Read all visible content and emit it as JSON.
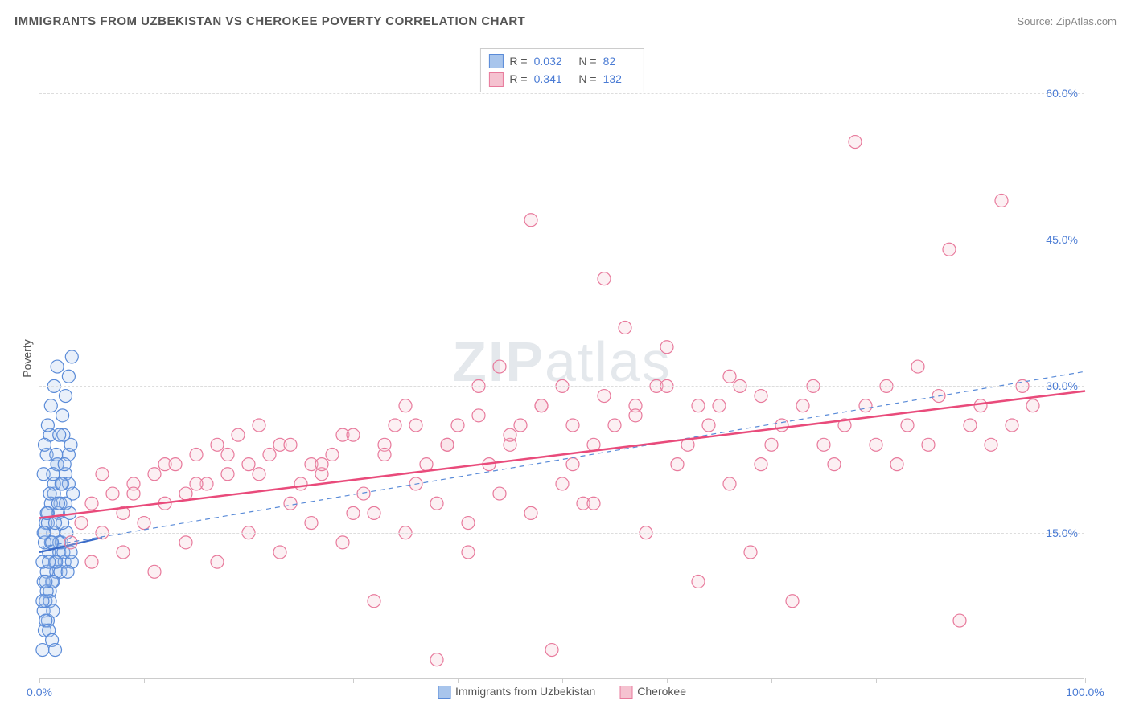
{
  "header": {
    "title": "IMMIGRANTS FROM UZBEKISTAN VS CHEROKEE POVERTY CORRELATION CHART",
    "source_label": "Source: ",
    "source_name": "ZipAtlas.com"
  },
  "watermark": {
    "zip": "ZIP",
    "atlas": "atlas"
  },
  "chart": {
    "type": "scatter",
    "ylabel": "Poverty",
    "xlim": [
      0,
      100
    ],
    "ylim": [
      0,
      65
    ],
    "x_ticks": [
      0,
      10,
      20,
      30,
      40,
      50,
      60,
      70,
      80,
      90,
      100
    ],
    "x_tick_labels": {
      "0": "0.0%",
      "100": "100.0%"
    },
    "y_grid": [
      15,
      30,
      45,
      60
    ],
    "y_tick_labels": {
      "15": "15.0%",
      "30": "30.0%",
      "45": "45.0%",
      "60": "60.0%"
    },
    "background_color": "#ffffff",
    "grid_color": "#dddddd",
    "axis_color": "#cccccc",
    "tick_label_color": "#4a7bd4",
    "axis_label_color": "#555555",
    "marker_radius": 8,
    "marker_stroke_width": 1.2,
    "marker_fill_opacity": 0.25,
    "series": [
      {
        "id": "uzbekistan",
        "label": "Immigrants from Uzbekistan",
        "color_fill": "#a8c5ec",
        "color_stroke": "#5a8bd8",
        "R": "0.032",
        "N": "82",
        "trend": {
          "x1": 0,
          "y1": 13.0,
          "x2": 6,
          "y2": 14.5,
          "stroke": "#3a6bc8",
          "width": 2.2,
          "dashed": false
        },
        "points": [
          [
            0.3,
            3
          ],
          [
            0.5,
            5
          ],
          [
            0.4,
            7
          ],
          [
            0.6,
            8
          ],
          [
            0.8,
            6
          ],
          [
            1.0,
            9
          ],
          [
            1.2,
            10
          ],
          [
            0.7,
            11
          ],
          [
            1.5,
            12
          ],
          [
            0.9,
            13
          ],
          [
            1.1,
            14
          ],
          [
            1.3,
            15
          ],
          [
            0.6,
            16
          ],
          [
            1.8,
            17
          ],
          [
            2.0,
            18
          ],
          [
            1.4,
            19
          ],
          [
            2.2,
            20
          ],
          [
            2.5,
            21
          ],
          [
            1.7,
            22
          ],
          [
            2.8,
            23
          ],
          [
            3.0,
            24
          ],
          [
            2.3,
            25
          ],
          [
            1.9,
            13
          ],
          [
            2.1,
            14
          ],
          [
            0.5,
            15
          ],
          [
            0.8,
            17
          ],
          [
            1.6,
            11
          ],
          [
            2.4,
            12
          ],
          [
            0.4,
            10
          ],
          [
            0.7,
            9
          ],
          [
            1.0,
            8
          ],
          [
            1.3,
            7
          ],
          [
            0.6,
            6
          ],
          [
            0.9,
            5
          ],
          [
            1.2,
            4
          ],
          [
            1.5,
            3
          ],
          [
            0.3,
            12
          ],
          [
            0.5,
            14
          ],
          [
            0.8,
            16
          ],
          [
            1.1,
            18
          ],
          [
            1.4,
            20
          ],
          [
            1.7,
            22
          ],
          [
            2.0,
            11
          ],
          [
            2.3,
            13
          ],
          [
            2.6,
            15
          ],
          [
            2.9,
            17
          ],
          [
            3.2,
            19
          ],
          [
            0.4,
            21
          ],
          [
            0.7,
            23
          ],
          [
            1.0,
            25
          ],
          [
            1.3,
            10
          ],
          [
            1.6,
            12
          ],
          [
            1.9,
            14
          ],
          [
            2.2,
            16
          ],
          [
            2.5,
            18
          ],
          [
            2.8,
            20
          ],
          [
            3.1,
            12
          ],
          [
            0.5,
            24
          ],
          [
            0.8,
            26
          ],
          [
            1.1,
            28
          ],
          [
            1.4,
            30
          ],
          [
            1.7,
            32
          ],
          [
            0.3,
            8
          ],
          [
            0.6,
            10
          ],
          [
            0.9,
            12
          ],
          [
            1.2,
            14
          ],
          [
            1.5,
            16
          ],
          [
            1.8,
            18
          ],
          [
            2.1,
            20
          ],
          [
            2.4,
            22
          ],
          [
            2.7,
            11
          ],
          [
            3.0,
            13
          ],
          [
            0.4,
            15
          ],
          [
            0.7,
            17
          ],
          [
            1.0,
            19
          ],
          [
            1.3,
            21
          ],
          [
            1.6,
            23
          ],
          [
            1.9,
            25
          ],
          [
            2.2,
            27
          ],
          [
            2.5,
            29
          ],
          [
            2.8,
            31
          ],
          [
            3.1,
            33
          ]
        ]
      },
      {
        "id": "cherokee",
        "label": "Cherokee",
        "color_fill": "#f5c2d0",
        "color_stroke": "#e87a9c",
        "R": "0.341",
        "N": "132",
        "trend": {
          "x1": 0,
          "y1": 16.5,
          "x2": 100,
          "y2": 29.5,
          "stroke": "#e94b7b",
          "width": 2.5,
          "dashed": false
        },
        "trend_dashed": {
          "x1": 0,
          "y1": 13.5,
          "x2": 100,
          "y2": 31.5,
          "stroke": "#5a8bd8",
          "width": 1.2
        },
        "points": [
          [
            3,
            14
          ],
          [
            4,
            16
          ],
          [
            5,
            18
          ],
          [
            6,
            15
          ],
          [
            7,
            19
          ],
          [
            8,
            17
          ],
          [
            9,
            20
          ],
          [
            10,
            16
          ],
          [
            11,
            21
          ],
          [
            12,
            18
          ],
          [
            13,
            22
          ],
          [
            14,
            19
          ],
          [
            15,
            23
          ],
          [
            16,
            20
          ],
          [
            17,
            24
          ],
          [
            18,
            21
          ],
          [
            19,
            25
          ],
          [
            20,
            22
          ],
          [
            21,
            26
          ],
          [
            22,
            23
          ],
          [
            23,
            24
          ],
          [
            24,
            18
          ],
          [
            25,
            20
          ],
          [
            26,
            22
          ],
          [
            27,
            21
          ],
          [
            28,
            23
          ],
          [
            29,
            25
          ],
          [
            30,
            17
          ],
          [
            31,
            19
          ],
          [
            32,
            8
          ],
          [
            33,
            24
          ],
          [
            34,
            26
          ],
          [
            35,
            28
          ],
          [
            36,
            20
          ],
          [
            37,
            22
          ],
          [
            38,
            2
          ],
          [
            39,
            24
          ],
          [
            40,
            26
          ],
          [
            41,
            13
          ],
          [
            42,
            30
          ],
          [
            43,
            22
          ],
          [
            44,
            32
          ],
          [
            45,
            24
          ],
          [
            46,
            26
          ],
          [
            47,
            47
          ],
          [
            48,
            28
          ],
          [
            49,
            3
          ],
          [
            50,
            30
          ],
          [
            51,
            22
          ],
          [
            52,
            18
          ],
          [
            53,
            24
          ],
          [
            54,
            41
          ],
          [
            55,
            26
          ],
          [
            56,
            36
          ],
          [
            57,
            28
          ],
          [
            58,
            15
          ],
          [
            59,
            30
          ],
          [
            60,
            34
          ],
          [
            61,
            22
          ],
          [
            62,
            24
          ],
          [
            63,
            10
          ],
          [
            64,
            26
          ],
          [
            65,
            28
          ],
          [
            66,
            20
          ],
          [
            67,
            30
          ],
          [
            68,
            13
          ],
          [
            69,
            22
          ],
          [
            70,
            24
          ],
          [
            71,
            26
          ],
          [
            72,
            8
          ],
          [
            73,
            28
          ],
          [
            74,
            30
          ],
          [
            75,
            24
          ],
          [
            76,
            22
          ],
          [
            77,
            26
          ],
          [
            78,
            55
          ],
          [
            79,
            28
          ],
          [
            80,
            24
          ],
          [
            81,
            30
          ],
          [
            82,
            22
          ],
          [
            83,
            26
          ],
          [
            84,
            32
          ],
          [
            85,
            24
          ],
          [
            86,
            29
          ],
          [
            87,
            44
          ],
          [
            88,
            6
          ],
          [
            89,
            26
          ],
          [
            90,
            28
          ],
          [
            91,
            24
          ],
          [
            92,
            49
          ],
          [
            93,
            26
          ],
          [
            94,
            30
          ],
          [
            95,
            28
          ],
          [
            5,
            12
          ],
          [
            8,
            13
          ],
          [
            11,
            11
          ],
          [
            14,
            14
          ],
          [
            17,
            12
          ],
          [
            20,
            15
          ],
          [
            23,
            13
          ],
          [
            26,
            16
          ],
          [
            29,
            14
          ],
          [
            32,
            17
          ],
          [
            35,
            15
          ],
          [
            38,
            18
          ],
          [
            41,
            16
          ],
          [
            44,
            19
          ],
          [
            47,
            17
          ],
          [
            50,
            20
          ],
          [
            53,
            18
          ],
          [
            6,
            21
          ],
          [
            9,
            19
          ],
          [
            12,
            22
          ],
          [
            15,
            20
          ],
          [
            18,
            23
          ],
          [
            21,
            21
          ],
          [
            24,
            24
          ],
          [
            27,
            22
          ],
          [
            30,
            25
          ],
          [
            33,
            23
          ],
          [
            36,
            26
          ],
          [
            39,
            24
          ],
          [
            42,
            27
          ],
          [
            45,
            25
          ],
          [
            48,
            28
          ],
          [
            51,
            26
          ],
          [
            54,
            29
          ],
          [
            57,
            27
          ],
          [
            60,
            30
          ],
          [
            63,
            28
          ],
          [
            66,
            31
          ],
          [
            69,
            29
          ]
        ]
      }
    ]
  },
  "legend": {
    "items": [
      {
        "label": "Immigrants from Uzbekistan",
        "fill": "#a8c5ec",
        "stroke": "#5a8bd8"
      },
      {
        "label": "Cherokee",
        "fill": "#f5c2d0",
        "stroke": "#e87a9c"
      }
    ]
  }
}
